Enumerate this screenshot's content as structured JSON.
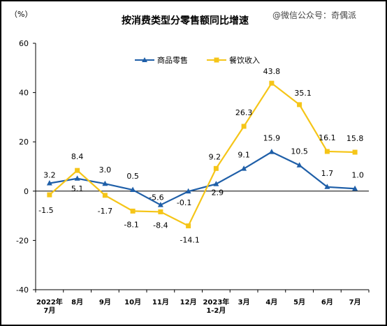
{
  "chart_data": {
    "type": "line",
    "title": "按消费类型分零售额同比增速",
    "unit_label": "（%）",
    "watermark": "@微信公众号：奇偶派",
    "categories": [
      [
        "2022年",
        "7月"
      ],
      [
        "8月"
      ],
      [
        "9月"
      ],
      [
        "10月"
      ],
      [
        "11月"
      ],
      [
        "12月"
      ],
      [
        "2023年",
        "1-2月"
      ],
      [
        "3月"
      ],
      [
        "4月"
      ],
      [
        "5月"
      ],
      [
        "6月"
      ],
      [
        "7月"
      ]
    ],
    "ylim": [
      -40,
      60
    ],
    "yticks": [
      -40,
      -20,
      0,
      20,
      40,
      60
    ],
    "grid": false,
    "legend_position": "top",
    "series": [
      {
        "name": "商品零售",
        "color": "#1f5fa8",
        "marker": "triangle",
        "values": [
          3.2,
          5.1,
          3.0,
          0.5,
          -5.6,
          -0.1,
          2.9,
          9.1,
          15.9,
          10.5,
          1.7,
          1.0
        ],
        "labels": [
          "3.2",
          "5.1",
          "3.0",
          "0.5",
          "-5.6",
          "-0.1",
          "2.9",
          "9.1",
          "15.9",
          "10.5",
          "1.7",
          "1.0"
        ]
      },
      {
        "name": "餐饮收入",
        "color": "#f5c518",
        "marker": "square",
        "values": [
          -1.5,
          8.4,
          -1.7,
          -8.1,
          -8.4,
          -14.1,
          9.2,
          26.3,
          43.8,
          35.1,
          16.1,
          15.8
        ],
        "labels": [
          "-1.5",
          "8.4",
          "-1.7",
          "-8.1",
          "-8.4",
          "-14.1",
          "9.2",
          "26.3",
          "43.8",
          "35.1",
          "16.1",
          "15.8"
        ]
      }
    ]
  }
}
